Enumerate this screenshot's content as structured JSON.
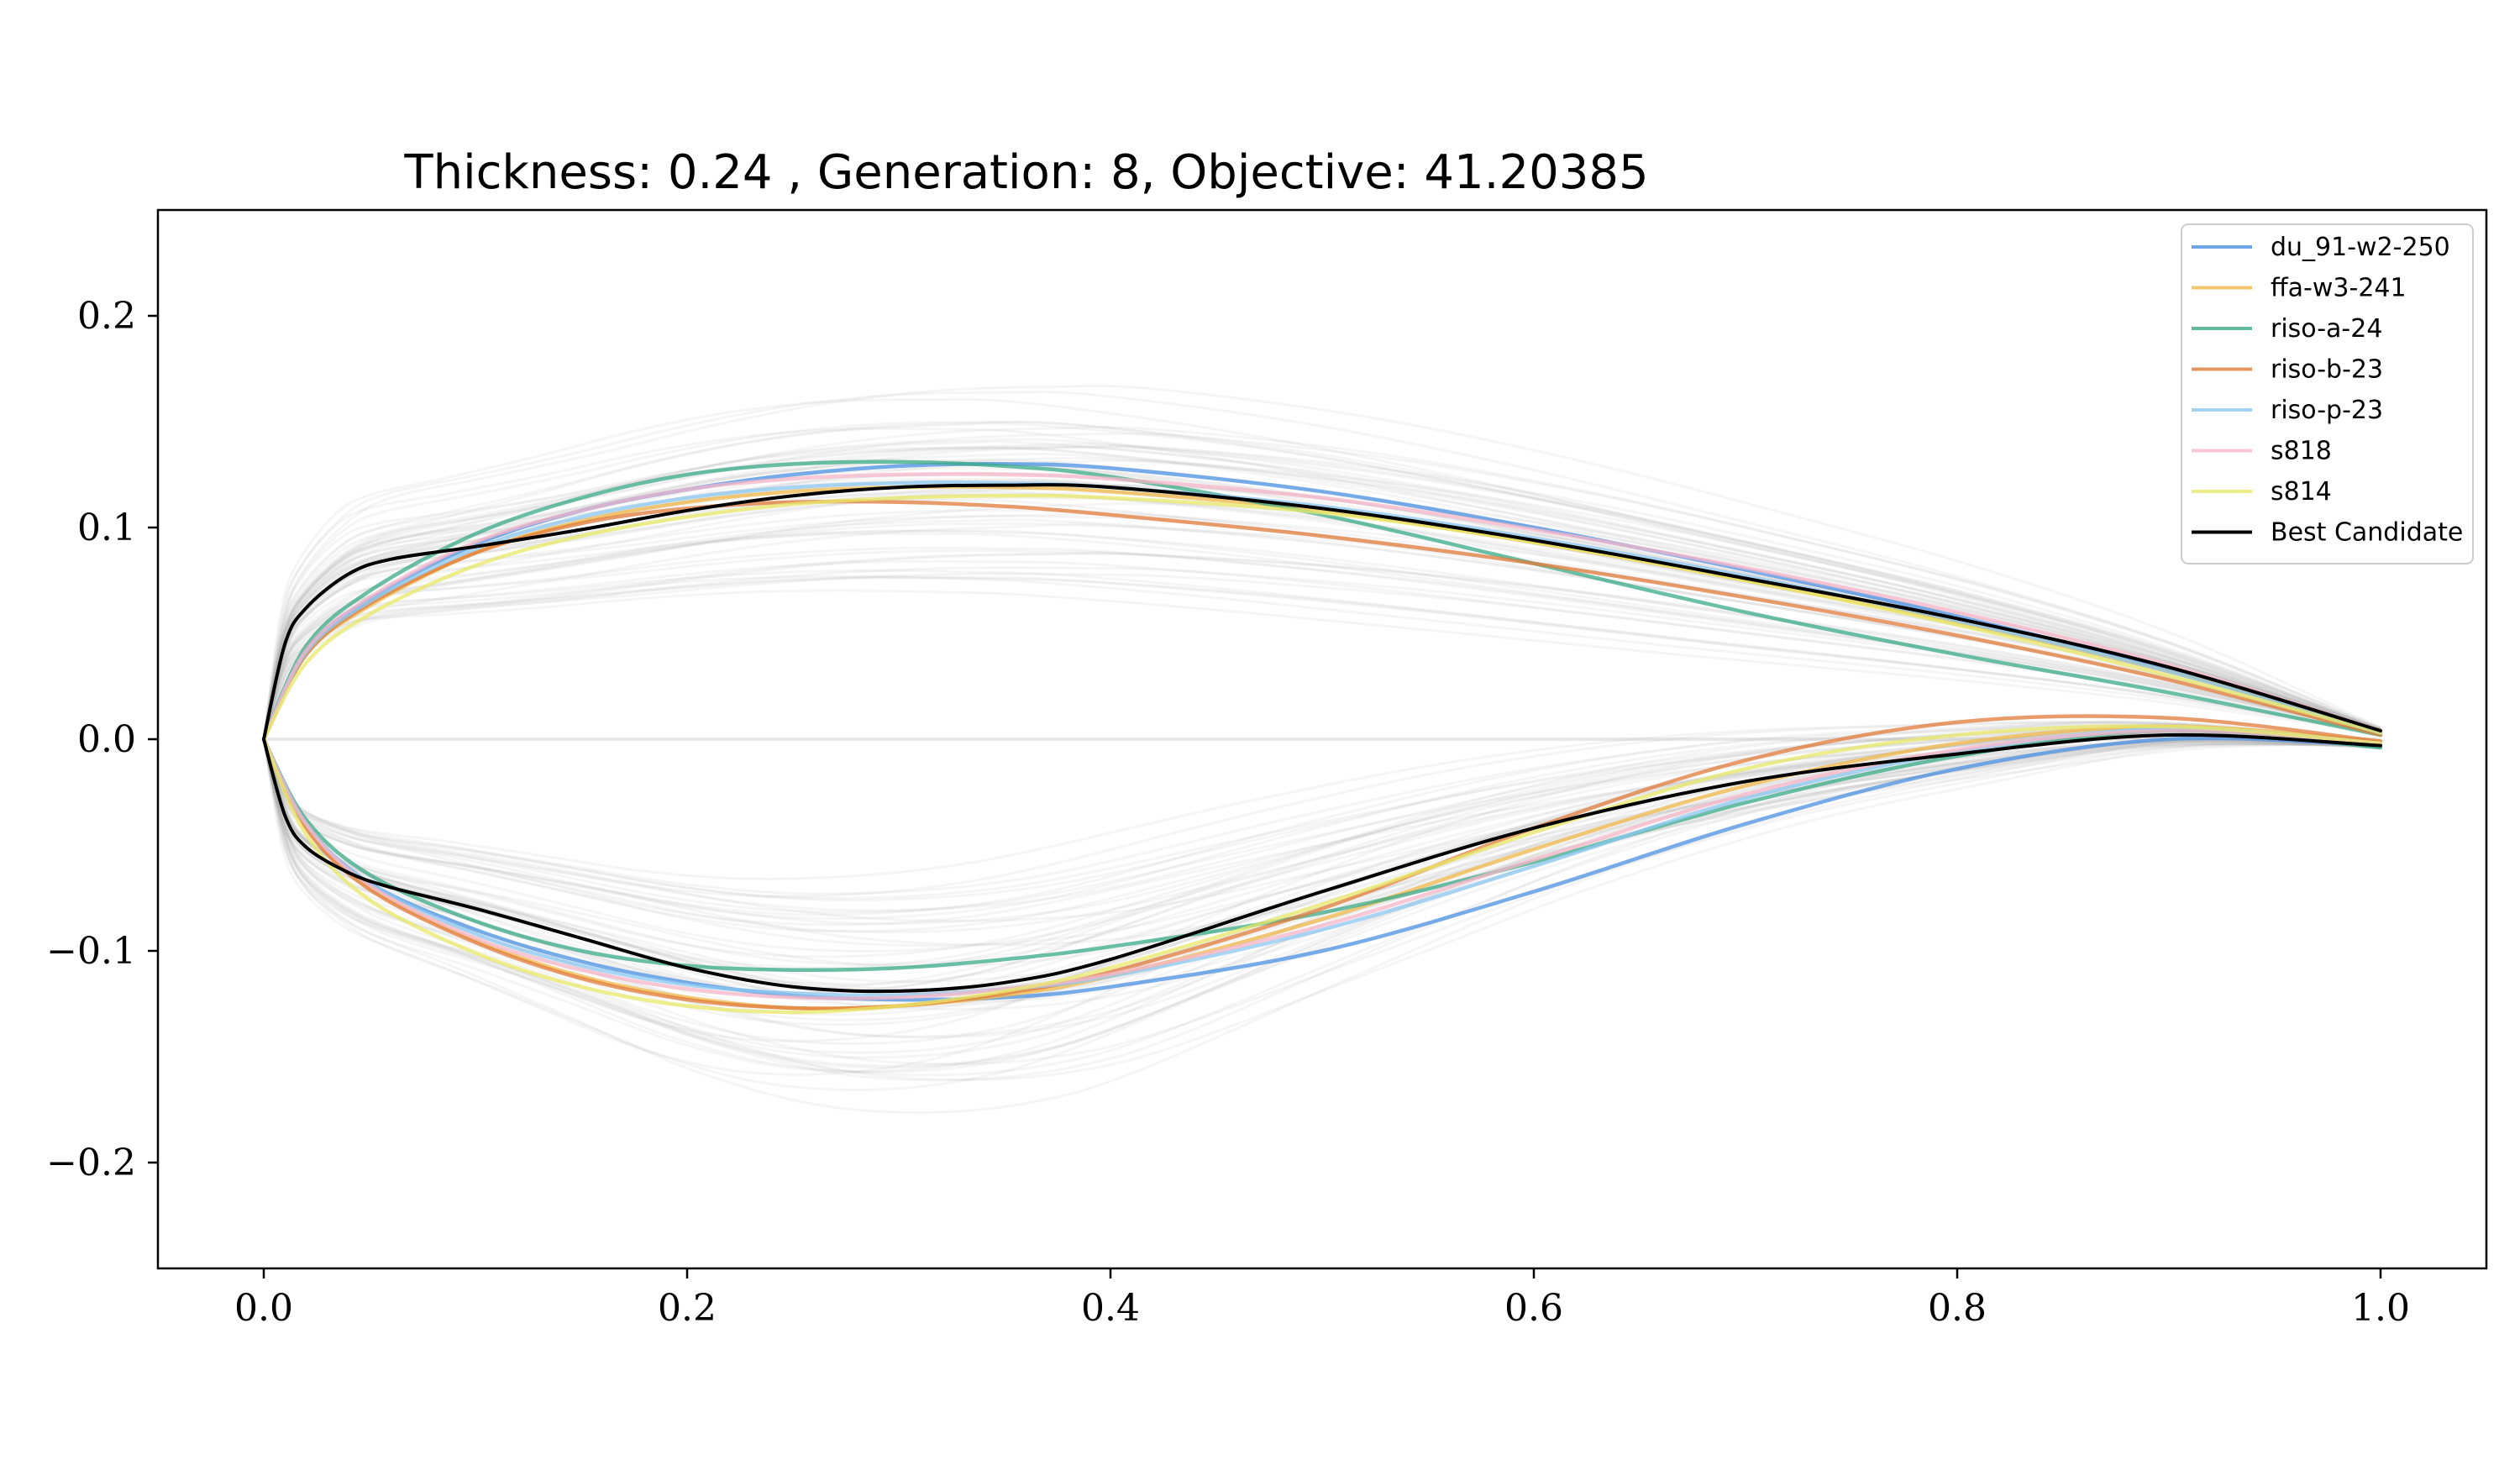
{
  "chart_data": {
    "type": "line",
    "title": "Thickness: 0.24 , Generation: 8, Objective: 41.20385",
    "xlabel": "",
    "ylabel": "",
    "xlim": [
      -0.05,
      1.05
    ],
    "ylim": [
      -0.25,
      0.25
    ],
    "xticks": [
      0.0,
      0.2,
      0.4,
      0.6,
      0.8,
      1.0
    ],
    "xtick_labels": [
      "0.0",
      "0.2",
      "0.4",
      "0.6",
      "0.8",
      "1.0"
    ],
    "yticks": [
      -0.2,
      -0.1,
      0.0,
      0.1,
      0.2
    ],
    "ytick_labels": [
      "−0.2",
      "−0.1",
      "0.0",
      "0.1",
      "0.2"
    ],
    "grid": false,
    "legend_position": "top-right",
    "background_population": {
      "count": 60,
      "color": "#aaaaaa",
      "opacity": 0.12
    },
    "series": [
      {
        "name": "du_91-w2-250",
        "color": "#4a90e2",
        "x": [
          0,
          0.02,
          0.05,
          0.1,
          0.15,
          0.2,
          0.25,
          0.3,
          0.35,
          0.4,
          0.5,
          0.6,
          0.7,
          0.8,
          0.9,
          1.0
        ],
        "upper": [
          0,
          0.042,
          0.066,
          0.092,
          0.108,
          0.118,
          0.125,
          0.129,
          0.13,
          0.128,
          0.117,
          0.1,
          0.08,
          0.058,
          0.033,
          0.003
        ],
        "lower": [
          0,
          -0.04,
          -0.068,
          -0.09,
          -0.105,
          -0.115,
          -0.121,
          -0.123,
          -0.122,
          -0.117,
          -0.1,
          -0.072,
          -0.04,
          -0.014,
          0.0,
          -0.003
        ]
      },
      {
        "name": "ffa-w3-241",
        "color": "#f0b84a",
        "x": [
          0,
          0.02,
          0.05,
          0.1,
          0.15,
          0.2,
          0.25,
          0.3,
          0.35,
          0.4,
          0.5,
          0.6,
          0.7,
          0.8,
          0.9,
          1.0
        ],
        "upper": [
          0,
          0.04,
          0.063,
          0.088,
          0.103,
          0.112,
          0.117,
          0.119,
          0.119,
          0.117,
          0.108,
          0.093,
          0.075,
          0.055,
          0.032,
          0.004
        ],
        "lower": [
          0,
          -0.041,
          -0.07,
          -0.095,
          -0.112,
          -0.122,
          -0.127,
          -0.126,
          -0.121,
          -0.112,
          -0.085,
          -0.052,
          -0.022,
          -0.002,
          0.006,
          -0.001
        ]
      },
      {
        "name": "riso-a-24",
        "color": "#3aa986",
        "x": [
          0,
          0.02,
          0.05,
          0.1,
          0.15,
          0.2,
          0.25,
          0.3,
          0.35,
          0.4,
          0.5,
          0.6,
          0.7,
          0.8,
          0.9,
          1.0
        ],
        "upper": [
          0,
          0.044,
          0.07,
          0.097,
          0.114,
          0.125,
          0.13,
          0.131,
          0.129,
          0.124,
          0.106,
          0.083,
          0.06,
          0.04,
          0.022,
          0.002
        ],
        "lower": [
          0,
          -0.038,
          -0.064,
          -0.086,
          -0.1,
          -0.107,
          -0.109,
          -0.108,
          -0.104,
          -0.098,
          -0.082,
          -0.058,
          -0.03,
          -0.008,
          0.004,
          -0.004
        ]
      },
      {
        "name": "riso-b-23",
        "color": "#e07b39",
        "x": [
          0,
          0.02,
          0.05,
          0.1,
          0.15,
          0.2,
          0.25,
          0.3,
          0.35,
          0.4,
          0.5,
          0.6,
          0.7,
          0.8,
          0.9,
          1.0
        ],
        "upper": [
          0,
          0.04,
          0.064,
          0.088,
          0.102,
          0.109,
          0.112,
          0.112,
          0.11,
          0.106,
          0.096,
          0.083,
          0.067,
          0.049,
          0.028,
          0.002
        ],
        "lower": [
          0,
          -0.042,
          -0.071,
          -0.096,
          -0.113,
          -0.123,
          -0.127,
          -0.126,
          -0.12,
          -0.11,
          -0.08,
          -0.042,
          -0.01,
          0.008,
          0.01,
          -0.001
        ]
      },
      {
        "name": "riso-p-23",
        "color": "#8cc8f0",
        "x": [
          0,
          0.02,
          0.05,
          0.1,
          0.15,
          0.2,
          0.25,
          0.3,
          0.35,
          0.4,
          0.5,
          0.6,
          0.7,
          0.8,
          0.9,
          1.0
        ],
        "upper": [
          0,
          0.041,
          0.065,
          0.09,
          0.105,
          0.114,
          0.119,
          0.121,
          0.121,
          0.119,
          0.11,
          0.095,
          0.077,
          0.056,
          0.032,
          0.003
        ],
        "lower": [
          0,
          -0.04,
          -0.068,
          -0.092,
          -0.107,
          -0.116,
          -0.12,
          -0.121,
          -0.118,
          -0.112,
          -0.09,
          -0.06,
          -0.028,
          -0.006,
          0.005,
          -0.002
        ]
      },
      {
        "name": "s818",
        "color": "#f6b6c8",
        "x": [
          0,
          0.02,
          0.05,
          0.1,
          0.15,
          0.2,
          0.25,
          0.3,
          0.35,
          0.4,
          0.5,
          0.6,
          0.7,
          0.8,
          0.9,
          1.0
        ],
        "upper": [
          0,
          0.042,
          0.067,
          0.093,
          0.108,
          0.118,
          0.123,
          0.125,
          0.125,
          0.123,
          0.114,
          0.099,
          0.081,
          0.06,
          0.035,
          0.004
        ],
        "lower": [
          0,
          -0.04,
          -0.069,
          -0.094,
          -0.109,
          -0.118,
          -0.122,
          -0.122,
          -0.118,
          -0.111,
          -0.088,
          -0.057,
          -0.026,
          -0.005,
          0.004,
          -0.002
        ]
      },
      {
        "name": "s814",
        "color": "#e8e86a",
        "x": [
          0,
          0.02,
          0.05,
          0.1,
          0.15,
          0.2,
          0.25,
          0.3,
          0.35,
          0.4,
          0.5,
          0.6,
          0.7,
          0.8,
          0.9,
          1.0
        ],
        "upper": [
          0,
          0.036,
          0.059,
          0.082,
          0.096,
          0.105,
          0.111,
          0.114,
          0.115,
          0.114,
          0.107,
          0.093,
          0.075,
          0.054,
          0.03,
          0.003
        ],
        "lower": [
          0,
          -0.045,
          -0.076,
          -0.101,
          -0.117,
          -0.126,
          -0.129,
          -0.126,
          -0.119,
          -0.108,
          -0.078,
          -0.044,
          -0.014,
          0.002,
          0.006,
          -0.002
        ]
      },
      {
        "name": "Best Candidate",
        "color": "#000000",
        "x": [
          0,
          0.01,
          0.02,
          0.04,
          0.06,
          0.1,
          0.15,
          0.2,
          0.25,
          0.3,
          0.35,
          0.4,
          0.5,
          0.6,
          0.7,
          0.8,
          0.9,
          1.0
        ],
        "upper": [
          0,
          0.045,
          0.062,
          0.078,
          0.085,
          0.091,
          0.099,
          0.108,
          0.115,
          0.119,
          0.12,
          0.119,
          0.109,
          0.094,
          0.076,
          0.057,
          0.034,
          0.004
        ],
        "lower": [
          0,
          -0.036,
          -0.051,
          -0.063,
          -0.07,
          -0.08,
          -0.094,
          -0.108,
          -0.117,
          -0.119,
          -0.115,
          -0.104,
          -0.072,
          -0.042,
          -0.02,
          -0.007,
          0.002,
          -0.003
        ]
      }
    ]
  }
}
